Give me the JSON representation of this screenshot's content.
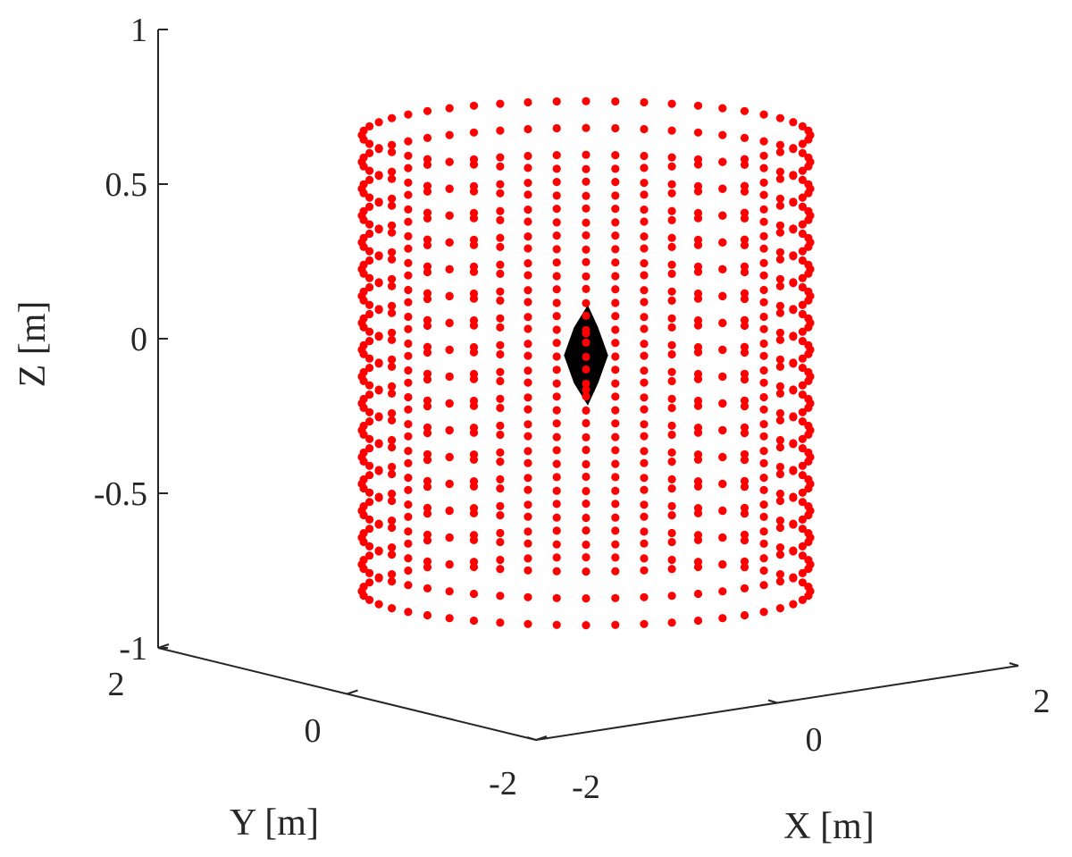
{
  "chart_data": {
    "type": "scatter",
    "projection": "3d",
    "axes": {
      "x": {
        "label": "X [m]",
        "range": [
          -2,
          2
        ],
        "ticks": [
          -2,
          0,
          2
        ],
        "tick_labels": [
          "-2",
          "0",
          "2"
        ]
      },
      "y": {
        "label": "Y [m]",
        "range": [
          -2,
          2
        ],
        "ticks": [
          -2,
          0,
          2
        ],
        "tick_labels": [
          "-2",
          "0",
          "2"
        ]
      },
      "z": {
        "label": "Z [m]",
        "range": [
          -1,
          1
        ],
        "ticks": [
          -1,
          -0.5,
          0,
          0.5,
          1
        ],
        "tick_labels": [
          "-1",
          "-0.5",
          "0",
          "0.5",
          "1"
        ]
      }
    },
    "grid": false,
    "series": [
      {
        "marker": "point",
        "color": "#ff0000",
        "shape": "cylinder",
        "radius": 1.5,
        "z_min": -0.8,
        "z_max": 0.65,
        "rings": 18,
        "points_per_ring": 48,
        "center": [
          0,
          0
        ]
      },
      {
        "marker": "filled-polygon",
        "color": "#000000",
        "shape": "bicone",
        "center": [
          0,
          0,
          -0.05
        ],
        "half_height": 0.16,
        "half_width": 0.13
      },
      {
        "marker": "point",
        "color": "#ff0000",
        "points": [
          [
            0,
            0,
            0.02
          ],
          [
            0,
            0,
            -0.16
          ]
        ]
      }
    ]
  },
  "colors": {
    "points": "#ff0000",
    "body": "#000000",
    "axes": "#262626"
  }
}
